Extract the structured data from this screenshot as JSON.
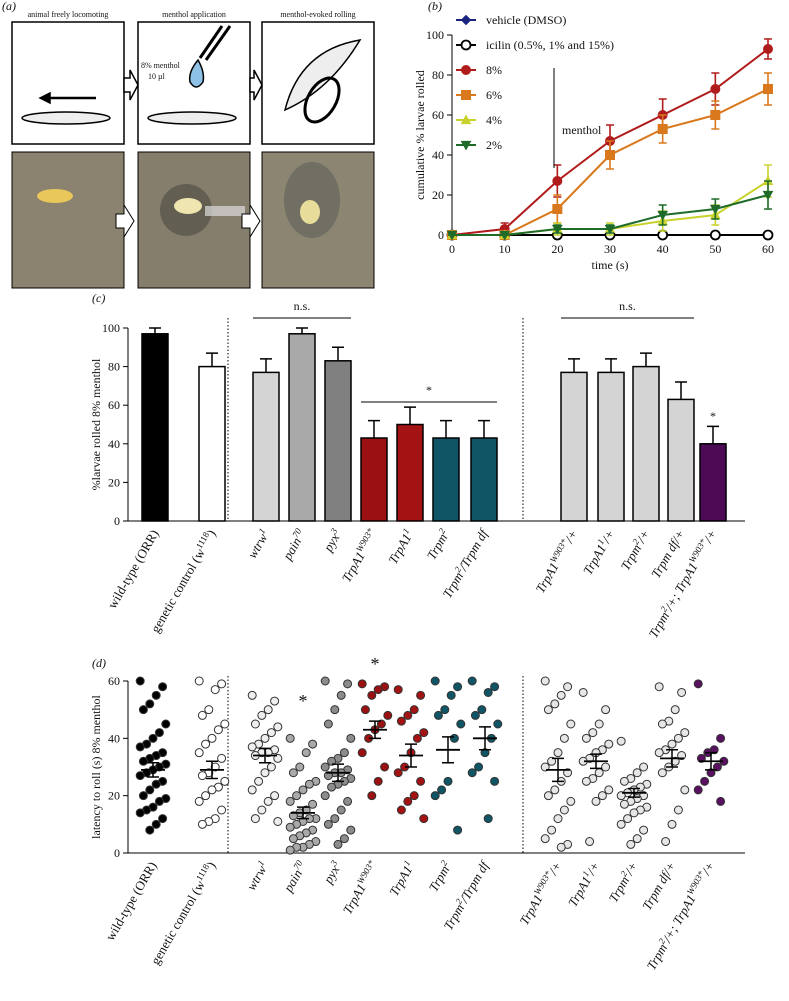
{
  "figure_a": {
    "panel_label": "(a)",
    "captions": [
      "animal freely locomoting",
      "menthol application",
      "menthol-evoked rolling"
    ],
    "menthol_note": [
      "8% menthol",
      "10 µl"
    ]
  },
  "chart_data": [
    {
      "type": "line",
      "panel_label": "(b)",
      "x_label": "time (s)",
      "y_label": "cumulative % larvae rolled",
      "x": [
        0,
        10,
        20,
        30,
        40,
        50,
        60
      ],
      "xlim": [
        0,
        60
      ],
      "xticks": [
        0,
        10,
        20,
        30,
        40,
        50,
        60
      ],
      "ylim": [
        0,
        100
      ],
      "yticks": [
        0,
        20,
        40,
        60,
        80,
        100
      ],
      "legend": "upper left",
      "annotation": "menthol",
      "series": [
        {
          "name": "vehicle (DMSO)",
          "color": "#1a237e",
          "marker": "diamond",
          "values": [
            0,
            0,
            0,
            0,
            0,
            0,
            0
          ]
        },
        {
          "name": "icilin (0.5%, 1% and 15%)",
          "color": "#000000",
          "marker": "circle-open",
          "values": [
            0,
            0,
            0,
            0,
            0,
            0,
            0
          ]
        },
        {
          "name": "8%",
          "color": "#b01c1c",
          "marker": "circle",
          "values": [
            0,
            3,
            27,
            47,
            60,
            73,
            93
          ],
          "errors": [
            0,
            3,
            8,
            8,
            8,
            8,
            5
          ]
        },
        {
          "name": "6%",
          "color": "#d9781c",
          "marker": "square",
          "values": [
            0,
            0,
            13,
            40,
            53,
            60,
            73
          ],
          "errors": [
            0,
            0,
            7,
            7,
            7,
            7,
            8
          ]
        },
        {
          "name": "4%",
          "color": "#c9d22c",
          "marker": "triangle-up",
          "values": [
            0,
            0,
            3,
            3,
            7,
            10,
            27
          ],
          "errors": [
            0,
            0,
            3,
            3,
            5,
            5,
            8
          ]
        },
        {
          "name": "2%",
          "color": "#1e6b2a",
          "marker": "triangle-down",
          "values": [
            0,
            0,
            3,
            3,
            10,
            13,
            20
          ],
          "errors": [
            0,
            0,
            2,
            2,
            5,
            5,
            7
          ]
        }
      ]
    },
    {
      "type": "bar",
      "panel_label": "(c)",
      "y_label": "%larvae rolled 8% menthol",
      "ylim": [
        0,
        100
      ],
      "yticks": [
        0,
        20,
        40,
        60,
        80,
        100
      ],
      "categories": [
        [
          "wild-type (ORR)"
        ],
        [
          "genetic control (w",
          "1118",
          ")"
        ],
        [
          "wtrw",
          "1"
        ],
        [
          "pain",
          "70"
        ],
        [
          "pyx",
          "3"
        ],
        [
          "TrpA1",
          "W903*"
        ],
        [
          "TrpA1",
          "1"
        ],
        [
          "Trpm",
          "2"
        ],
        [
          "Trpm",
          "2",
          "/Trpm df"
        ],
        [
          "TrpA1",
          "W903*",
          "/+"
        ],
        [
          "TrpA1",
          "1",
          "/+"
        ],
        [
          "Trpm",
          "2",
          "/+"
        ],
        [
          "Trpm df/+"
        ],
        [
          "Trpm",
          "2",
          "/+; TrpA1",
          "W903*",
          "/+"
        ]
      ],
      "values": [
        97,
        80,
        77,
        97,
        83,
        43,
        50,
        43,
        43,
        77,
        77,
        80,
        63,
        40
      ],
      "errors": [
        3,
        7,
        7,
        3,
        7,
        9,
        9,
        9,
        9,
        7,
        7,
        7,
        9,
        9
      ],
      "colors": [
        "#000000",
        "#ffffff",
        "#d4d4d4",
        "#a9a9a9",
        "#808080",
        "#9b1010",
        "#a31313",
        "#0f5566",
        "#0f5566",
        "#d4d4d4",
        "#d4d4d4",
        "#d4d4d4",
        "#d4d4d4",
        "#4d0a55"
      ],
      "annotations": [
        "n.s.",
        "*",
        "n.s.",
        "*"
      ]
    },
    {
      "type": "scatter",
      "panel_label": "(d)",
      "y_label": "latency to roll (s) 8% menthol",
      "ylim": [
        0,
        60
      ],
      "yticks": [
        0,
        20,
        40,
        60
      ],
      "categories": [
        [
          "wild-type (ORR)"
        ],
        [
          "genetic control (w",
          "1118",
          ")"
        ],
        [
          "wtrw",
          "1"
        ],
        [
          "pain",
          "70"
        ],
        [
          "pyx",
          "3"
        ],
        [
          "TrpA1",
          "W903*"
        ],
        [
          "TrpA1",
          "1"
        ],
        [
          "Trpm",
          "2"
        ],
        [
          "Trpm",
          "2",
          "/Trpm df"
        ],
        [
          "TrpA1",
          "W903*",
          "/+"
        ],
        [
          "TrpA1",
          "1",
          "/+"
        ],
        [
          "Trpm",
          "2",
          "/+"
        ],
        [
          "Trpm df/+"
        ],
        [
          "Trpm",
          "2",
          "/+; TrpA1",
          "W903*",
          "/+"
        ]
      ],
      "points": [
        [
          60,
          58,
          55,
          52,
          50,
          45,
          42,
          40,
          38,
          37,
          35,
          34,
          33,
          32,
          31,
          30,
          29,
          28,
          27,
          25,
          24,
          22,
          20,
          19,
          18,
          16,
          15,
          14,
          12,
          10,
          8
        ],
        [
          60,
          59,
          57,
          50,
          48,
          45,
          43,
          40,
          38,
          35,
          33,
          30,
          28,
          27,
          25,
          23,
          22,
          20,
          18,
          15,
          12,
          11,
          10
        ],
        [
          55,
          53,
          50,
          48,
          45,
          44,
          42,
          40,
          38,
          37,
          36,
          35,
          35,
          34,
          33,
          30,
          28,
          25,
          22,
          20,
          18,
          15,
          12,
          11
        ],
        [
          40,
          38,
          35,
          30,
          28,
          25,
          24,
          22,
          20,
          18,
          17,
          15,
          14,
          13,
          12,
          12,
          11,
          10,
          9,
          8,
          7,
          6,
          5,
          4,
          3,
          2,
          2,
          1
        ],
        [
          60,
          59,
          55,
          50,
          45,
          40,
          35,
          33,
          32,
          30,
          29,
          28,
          28,
          27,
          26,
          25,
          24,
          23,
          20,
          18,
          15,
          12,
          10,
          8,
          5,
          3
        ],
        [
          59,
          58,
          57,
          55,
          50,
          48,
          45,
          43,
          40,
          35,
          30,
          25,
          20
        ],
        [
          57,
          55,
          50,
          48,
          46,
          42,
          40,
          35,
          30,
          28,
          25,
          20,
          18,
          15,
          12
        ],
        [
          60,
          58,
          55,
          50,
          48,
          45,
          40,
          25,
          22,
          20,
          8
        ],
        [
          60,
          58,
          56,
          50,
          48,
          45,
          40,
          35,
          30,
          28,
          25,
          12
        ],
        [
          60,
          58,
          55,
          52,
          50,
          45,
          40,
          35,
          32,
          30,
          28,
          25,
          22,
          20,
          18,
          15,
          12,
          8,
          5,
          3,
          2
        ],
        [
          56,
          50,
          45,
          42,
          40,
          38,
          36,
          35,
          33,
          32,
          30,
          28,
          26,
          25,
          22,
          20,
          18,
          4
        ],
        [
          39,
          30,
          28,
          26,
          25,
          24,
          23,
          22,
          21,
          20,
          20,
          19,
          18,
          17,
          16,
          15,
          14,
          12,
          10,
          8,
          5,
          3
        ],
        [
          58,
          56,
          50,
          46,
          45,
          42,
          40,
          38,
          36,
          35,
          34,
          32,
          30,
          28,
          22,
          15,
          10,
          4
        ],
        [
          59,
          40,
          36,
          35,
          33,
          32,
          30,
          28,
          25,
          22,
          18
        ]
      ],
      "means": [
        29,
        29,
        34,
        14,
        28,
        43,
        34,
        36,
        40,
        29,
        32,
        21,
        33,
        32
      ],
      "errors": [
        2.5,
        3,
        2.5,
        2,
        3,
        3,
        4,
        4.5,
        4,
        4,
        2.5,
        1.5,
        3,
        3
      ],
      "colors": [
        "#000000",
        "#ffffff",
        "#eeeeee",
        "#a9a9a9",
        "#8c8c8c",
        "#9b1010",
        "#a31313",
        "#0f5566",
        "#0f5566",
        "#e6e6e6",
        "#e6e6e6",
        "#e6e6e6",
        "#e6e6e6",
        "#5a1060"
      ],
      "annotations": [
        "*",
        "*"
      ]
    }
  ]
}
